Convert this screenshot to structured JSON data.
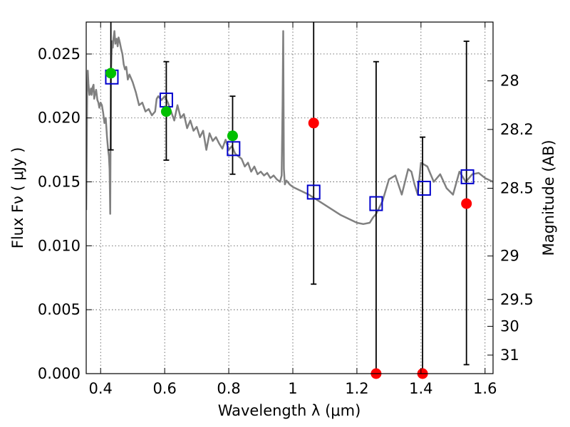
{
  "chart_data": {
    "type": "scatter",
    "xlabel": "Wavelength  λ (μm)",
    "ylabel": "Flux  Fν  ( μJy )",
    "y2label": "Magnitude (AB)",
    "xlim": [
      0.355,
      1.625
    ],
    "ylim": [
      0.0,
      0.0275
    ],
    "x_ticks": [
      0.4,
      0.6,
      0.8,
      1.0,
      1.2,
      1.4,
      1.6
    ],
    "x_tick_labels": [
      "0.4",
      "0.6",
      "0.8",
      "1",
      "1.2",
      "1.4",
      "1.6"
    ],
    "y_ticks": [
      0.0,
      0.005,
      0.01,
      0.015,
      0.02,
      0.025
    ],
    "y_tick_labels": [
      "0.000",
      "0.005",
      "0.010",
      "0.015",
      "0.020",
      "0.025"
    ],
    "y2_ticks": [
      {
        "mag": "28",
        "flux": 0.0229
      },
      {
        "mag": "28.2",
        "flux": 0.0191
      },
      {
        "mag": "28.5",
        "flux": 0.0145
      },
      {
        "mag": "29",
        "flux": 0.0092
      },
      {
        "mag": "29.5",
        "flux": 0.0058
      },
      {
        "mag": "30",
        "flux": 0.0037
      },
      {
        "mag": "31",
        "flux": 0.00145
      }
    ],
    "grid": true,
    "series": [
      {
        "style": "line",
        "color": "#808080",
        "x": [
          0.355,
          0.358,
          0.36,
          0.362,
          0.365,
          0.368,
          0.37,
          0.372,
          0.375,
          0.378,
          0.38,
          0.383,
          0.386,
          0.39,
          0.393,
          0.396,
          0.4,
          0.404,
          0.408,
          0.412,
          0.416,
          0.42,
          0.423,
          0.426,
          0.428,
          0.43,
          0.432,
          0.434,
          0.436,
          0.438,
          0.44,
          0.443,
          0.446,
          0.45,
          0.453,
          0.456,
          0.46,
          0.464,
          0.468,
          0.472,
          0.476,
          0.48,
          0.485,
          0.49,
          0.5,
          0.51,
          0.52,
          0.53,
          0.54,
          0.55,
          0.56,
          0.57,
          0.575,
          0.58,
          0.59,
          0.6,
          0.61,
          0.62,
          0.63,
          0.64,
          0.65,
          0.66,
          0.67,
          0.68,
          0.69,
          0.7,
          0.71,
          0.72,
          0.73,
          0.74,
          0.75,
          0.76,
          0.77,
          0.78,
          0.79,
          0.8,
          0.81,
          0.82,
          0.83,
          0.84,
          0.85,
          0.86,
          0.87,
          0.88,
          0.89,
          0.9,
          0.91,
          0.92,
          0.93,
          0.94,
          0.95,
          0.96,
          0.965,
          0.968,
          0.97,
          0.972,
          0.975,
          0.98,
          0.99,
          1.0,
          1.05,
          1.1,
          1.15,
          1.2,
          1.22,
          1.24,
          1.25,
          1.26,
          1.28,
          1.3,
          1.32,
          1.34,
          1.36,
          1.37,
          1.38,
          1.39,
          1.4,
          1.42,
          1.44,
          1.46,
          1.48,
          1.5,
          1.52,
          1.54,
          1.56,
          1.58,
          1.6,
          1.625
        ],
        "y": [
          0.0128,
          0.0218,
          0.0237,
          0.0227,
          0.0218,
          0.022,
          0.0223,
          0.0218,
          0.0224,
          0.0226,
          0.0215,
          0.0219,
          0.0222,
          0.0214,
          0.0212,
          0.0208,
          0.0212,
          0.021,
          0.0204,
          0.0196,
          0.02,
          0.0185,
          0.0176,
          0.017,
          0.016,
          0.0125,
          0.023,
          0.025,
          0.026,
          0.0255,
          0.0262,
          0.0268,
          0.0258,
          0.0262,
          0.0256,
          0.0263,
          0.0259,
          0.0254,
          0.025,
          0.0242,
          0.0238,
          0.024,
          0.023,
          0.0234,
          0.0228,
          0.022,
          0.021,
          0.0212,
          0.0205,
          0.0207,
          0.0202,
          0.0205,
          0.0215,
          0.0217,
          0.0214,
          0.0217,
          0.0212,
          0.0205,
          0.0198,
          0.021,
          0.02,
          0.0203,
          0.0192,
          0.0198,
          0.019,
          0.0193,
          0.0185,
          0.019,
          0.0175,
          0.0188,
          0.0182,
          0.0185,
          0.018,
          0.0176,
          0.0183,
          0.0175,
          0.0178,
          0.0172,
          0.017,
          0.0168,
          0.0162,
          0.0165,
          0.0158,
          0.0162,
          0.0156,
          0.0158,
          0.0155,
          0.0157,
          0.0153,
          0.0155,
          0.0152,
          0.015,
          0.0155,
          0.021,
          0.0268,
          0.016,
          0.0148,
          0.0151,
          0.0148,
          0.0146,
          0.014,
          0.0132,
          0.0124,
          0.0118,
          0.0117,
          0.0118,
          0.0122,
          0.0125,
          0.0135,
          0.0152,
          0.0155,
          0.014,
          0.016,
          0.0158,
          0.0148,
          0.014,
          0.0165,
          0.0162,
          0.015,
          0.0156,
          0.0145,
          0.014,
          0.0158,
          0.015,
          0.0156,
          0.0157,
          0.0153,
          0.015
        ]
      },
      {
        "style": "square",
        "color": "#0000cc",
        "x": [
          0.435,
          0.605,
          0.815,
          1.065,
          1.26,
          1.41,
          1.545
        ],
        "y": [
          0.0232,
          0.0214,
          0.0176,
          0.0142,
          0.0133,
          0.0145,
          0.0154
        ]
      },
      {
        "style": "dot",
        "color": "#00c000",
        "x": [
          0.432,
          0.605,
          0.812
        ],
        "y": [
          0.0235,
          0.0205,
          0.0186
        ]
      },
      {
        "style": "dot",
        "color": "#ff0000",
        "x": [
          1.065,
          1.26,
          1.405,
          1.542
        ],
        "y": [
          0.0196,
          0.0,
          0.0,
          0.0133
        ]
      },
      {
        "style": "errorbar",
        "color": "#000000",
        "x": [
          0.432,
          0.605,
          0.812,
          1.065,
          1.26,
          1.405,
          1.542
        ],
        "ylow": [
          0.0175,
          0.0167,
          0.0156,
          0.007,
          0.0,
          0.0,
          0.0007
        ],
        "yhigh": [
          0.0275,
          0.0244,
          0.0217,
          0.0275,
          0.0244,
          0.0185,
          0.026
        ]
      }
    ]
  }
}
